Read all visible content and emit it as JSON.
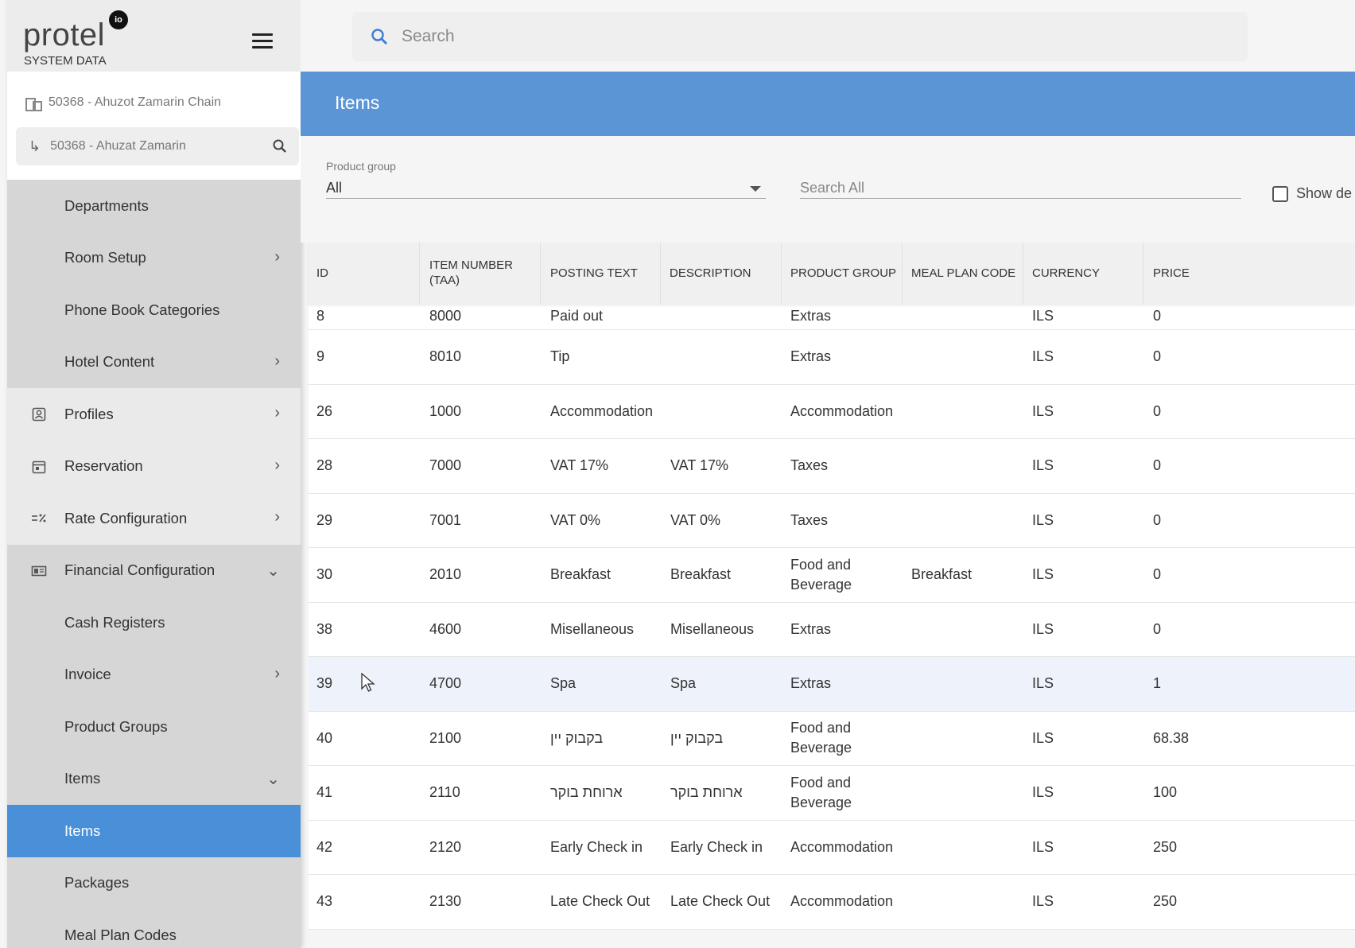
{
  "app": {
    "brand": "protel",
    "brand_mark": "io",
    "subtitle": "SYSTEM DATA"
  },
  "chain": {
    "label": "50368 - Ahuzot Zamarin Chain",
    "hotel": "50368 - Ahuzat Zamarin",
    "hotel_arrow": "↳"
  },
  "sidebar": {
    "items": [
      {
        "label": "Departments",
        "chev": ""
      },
      {
        "label": "Room Setup",
        "chev": "›"
      },
      {
        "label": "Phone Book Categories",
        "chev": ""
      },
      {
        "label": "Hotel Content",
        "chev": "›"
      },
      {
        "label": "Profiles",
        "chev": "›",
        "icon": "profile-icon"
      },
      {
        "label": "Reservation",
        "chev": "›",
        "icon": "calendar-icon"
      },
      {
        "label": "Rate Configuration",
        "chev": "›",
        "icon": "rate-icon"
      },
      {
        "label": "Financial Configuration",
        "chev": "⌄",
        "icon": "finance-icon"
      },
      {
        "label": "Cash Registers",
        "chev": ""
      },
      {
        "label": "Invoice",
        "chev": "›"
      },
      {
        "label": "Product Groups",
        "chev": ""
      },
      {
        "label": "Items",
        "chev": "⌄"
      },
      {
        "label": "Items",
        "chev": "",
        "active": true
      },
      {
        "label": "Packages",
        "chev": ""
      },
      {
        "label": "Meal Plan Codes",
        "chev": ""
      }
    ]
  },
  "search": {
    "placeholder": "Search"
  },
  "page": {
    "title": "Items"
  },
  "filters": {
    "product_group_label": "Product group",
    "product_group_value": "All",
    "search_all_placeholder": "Search All",
    "show_deleted_label": "Show de"
  },
  "table": {
    "columns": [
      "ID",
      "ITEM NUMBER (TAA)",
      "POSTING TEXT",
      "DESCRIPTION",
      "PRODUCT GROUP",
      "MEAL PLAN CODE",
      "CURRENCY",
      "PRICE"
    ],
    "rows": [
      [
        "8",
        "8000",
        "Paid out",
        "",
        "Extras",
        "",
        "ILS",
        "0"
      ],
      [
        "9",
        "8010",
        "Tip",
        "",
        "Extras",
        "",
        "ILS",
        "0"
      ],
      [
        "26",
        "1000",
        "Accommodation",
        "",
        "Accommodation",
        "",
        "ILS",
        "0"
      ],
      [
        "28",
        "7000",
        "VAT 17%",
        "VAT 17%",
        "Taxes",
        "",
        "ILS",
        "0"
      ],
      [
        "29",
        "7001",
        "VAT 0%",
        "VAT 0%",
        "Taxes",
        "",
        "ILS",
        "0"
      ],
      [
        "30",
        "2010",
        "Breakfast",
        "Breakfast",
        "Food and Beverage",
        "Breakfast",
        "ILS",
        "0"
      ],
      [
        "38",
        "4600",
        "Misellaneous",
        "Misellaneous",
        "Extras",
        "",
        "ILS",
        "0"
      ],
      [
        "39",
        "4700",
        "Spa",
        "Spa",
        "Extras",
        "",
        "ILS",
        "1"
      ],
      [
        "40",
        "2100",
        "בקבוק יין",
        "בקבוק יין",
        "Food and Beverage",
        "",
        "ILS",
        "68.38"
      ],
      [
        "41",
        "2110",
        "ארוחת בוקר",
        "ארוחת בוקר",
        "Food and Beverage",
        "",
        "ILS",
        "100"
      ],
      [
        "42",
        "2120",
        "Early Check in",
        "Early Check in",
        "Accommodation",
        "",
        "ILS",
        "250"
      ],
      [
        "43",
        "2130",
        "Late Check Out",
        "Late Check Out",
        "Accommodation",
        "",
        "ILS",
        "250"
      ]
    ],
    "highlighted_row": 7
  }
}
